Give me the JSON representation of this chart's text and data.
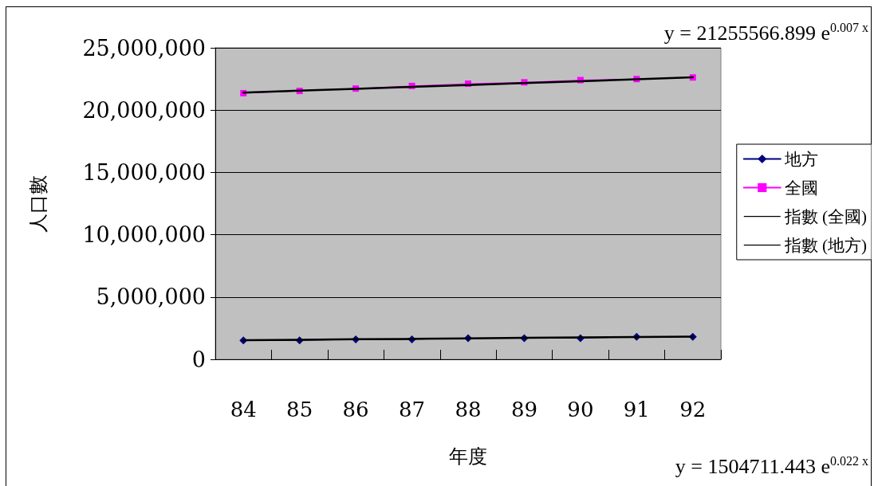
{
  "chart_data": {
    "type": "line",
    "xlabel": "年度",
    "ylabel": "人口數",
    "categories": [
      "84",
      "85",
      "86",
      "87",
      "88",
      "89",
      "90",
      "91",
      "92"
    ],
    "series": [
      {
        "name": "地方",
        "color": "#000080",
        "marker": "diamond",
        "values": [
          1520000,
          1520000,
          1600000,
          1600000,
          1700000,
          1700000,
          1700000,
          1810000,
          1810000
        ]
      },
      {
        "name": "全國",
        "color": "#ff00ff",
        "marker": "square",
        "values": [
          21360000,
          21540000,
          21730000,
          21940000,
          22120000,
          22230000,
          22410000,
          22490000,
          22620000
        ]
      },
      {
        "name": "指數 (全國)",
        "color": "#000000",
        "marker": "none",
        "values": [
          21410000,
          21560000,
          21710000,
          21860000,
          22010000,
          22170000,
          22320000,
          22480000,
          22640000
        ]
      },
      {
        "name": "指數 (地方)",
        "color": "#000000",
        "marker": "none",
        "values": [
          1540000,
          1570000,
          1610000,
          1640000,
          1680000,
          1720000,
          1760000,
          1790000,
          1830000
        ]
      }
    ],
    "ylim": [
      0,
      25000000
    ],
    "yticks": [
      0,
      {
        "value": 5000000,
        "label": "5,000,000"
      },
      {
        "value": 10000000,
        "label": "10,000,000"
      },
      {
        "value": 15000000,
        "label": "15,000,000"
      },
      {
        "value": 20000000,
        "label": "20,000,000"
      },
      {
        "value": 25000000,
        "label": "25,000,000"
      }
    ],
    "grid": "y",
    "legend": "right",
    "annotations": [
      "y = 21255566.899 e$^{0.007 x}$",
      "y = 1504711.443 e$^{0.022 x}$"
    ]
  }
}
